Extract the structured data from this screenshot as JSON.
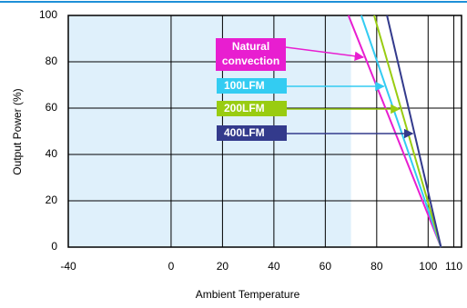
{
  "chart_data": {
    "type": "line",
    "x_label": "Ambient Temperature",
    "y_label": "Output Power  (%)",
    "xlim": [
      -40,
      113
    ],
    "ylim": [
      0,
      100
    ],
    "xticks": [
      -40,
      0,
      20,
      40,
      60,
      80,
      100,
      110
    ],
    "yticks": [
      0,
      20,
      40,
      60,
      80,
      100
    ],
    "grid": true,
    "shade_until": 70,
    "shade_color": "#dff0fb",
    "series": [
      {
        "name": "Natural convection",
        "color": "#e81ed0",
        "x": [
          69,
          105
        ],
        "values": [
          100,
          0
        ]
      },
      {
        "name": "100LFM",
        "color": "#33ccf2",
        "x": [
          74,
          105
        ],
        "values": [
          100,
          0
        ]
      },
      {
        "name": "200LFM",
        "color": "#99cc11",
        "x": [
          79,
          105
        ],
        "values": [
          100,
          0
        ]
      },
      {
        "name": "400LFM",
        "color": "#333a8c",
        "x": [
          84,
          105
        ],
        "values": [
          100,
          0
        ]
      }
    ]
  }
}
